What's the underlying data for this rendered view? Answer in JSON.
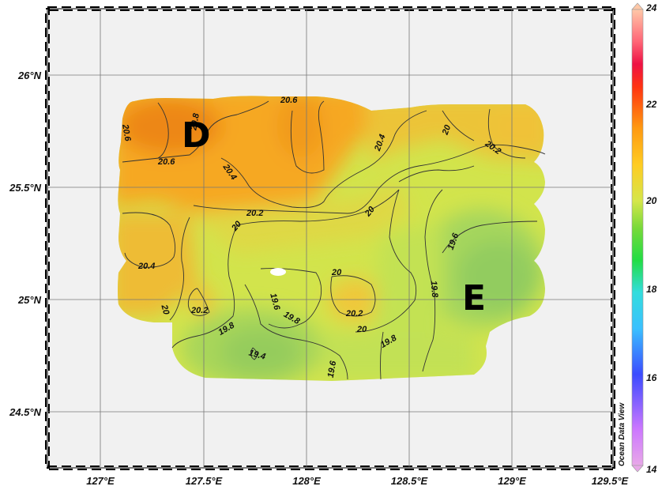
{
  "map": {
    "lon_labels": [
      "127°E",
      "127.5°E",
      "128°E",
      "128.5°E",
      "129°E",
      "129.5°E"
    ],
    "lat_labels": [
      "26°N",
      "25.5°N",
      "25°N",
      "24.5°N"
    ],
    "region_labels": [
      "D",
      "E"
    ],
    "contour_labels": [
      "20.6",
      "20.8",
      "20.6",
      "20.4",
      "20",
      "20.2",
      "20.6",
      "20.4",
      "20.4",
      "20.2",
      "20",
      "20",
      "19.6",
      "20",
      "19.8",
      "20.2",
      "20",
      "19.6",
      "19.8",
      "20.2",
      "20",
      "19.8",
      "19.8",
      "19.4",
      "19.6",
      "20.2"
    ]
  },
  "colorbar": {
    "min": 14,
    "max": 24,
    "tick_labels": [
      "24",
      "22",
      "20",
      "18",
      "16",
      "14"
    ],
    "colors": [
      "#e8a8e8",
      "#cc66ff",
      "#4444ff",
      "#33bbff",
      "#33dddd",
      "#33cc66",
      "#55cc22",
      "#99dd33",
      "#ccee33",
      "#ffcc22",
      "#ff8800",
      "#ff3311",
      "#ee1133",
      "#ff7777",
      "#ffaa88",
      "#ffccaa"
    ],
    "brand": "Ocean Data View"
  },
  "field_colors": {
    "orange_dark": "#ef8a16",
    "orange": "#f7a823",
    "orange_light": "#f5bc34",
    "yellow": "#e9d03a",
    "yellow_green": "#d7e247",
    "lime": "#c7e44e",
    "green_light": "#b8dc58",
    "green": "#9fd35e"
  }
}
